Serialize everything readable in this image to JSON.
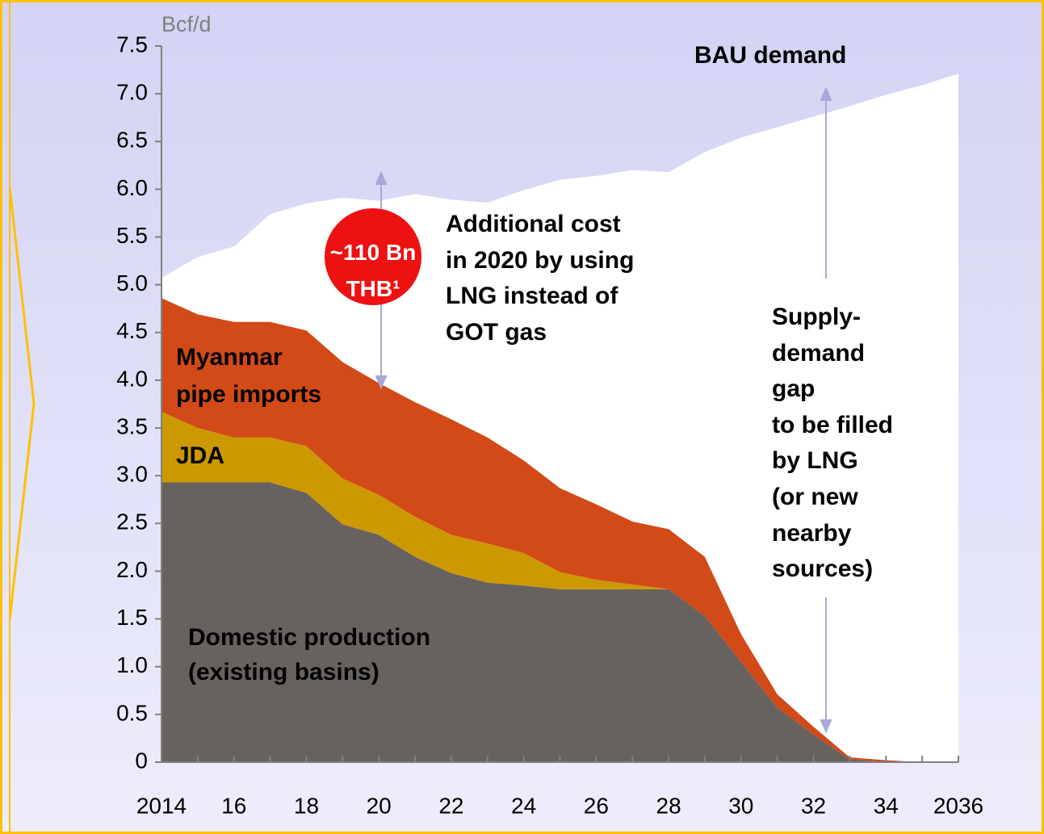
{
  "chart_data": {
    "type": "stacked-area",
    "y_unit": "Bcf/d",
    "x": [
      2014,
      2015,
      2016,
      2017,
      2018,
      2019,
      2020,
      2021,
      2022,
      2023,
      2024,
      2025,
      2026,
      2027,
      2028,
      2029,
      2030,
      2031,
      2032,
      2033,
      2034,
      2035,
      2036
    ],
    "xlim": [
      2014,
      2036
    ],
    "xticks": [
      {
        "value": 2014,
        "label": "2014"
      },
      {
        "value": 2016,
        "label": "16"
      },
      {
        "value": 2018,
        "label": "18"
      },
      {
        "value": 2020,
        "label": "20"
      },
      {
        "value": 2022,
        "label": "22"
      },
      {
        "value": 2024,
        "label": "24"
      },
      {
        "value": 2026,
        "label": "26"
      },
      {
        "value": 2028,
        "label": "28"
      },
      {
        "value": 2030,
        "label": "30"
      },
      {
        "value": 2032,
        "label": "32"
      },
      {
        "value": 2034,
        "label": "34"
      },
      {
        "value": 2036,
        "label": "2036"
      }
    ],
    "ylim": [
      0,
      7.5
    ],
    "yticks": [
      0,
      0.5,
      {
        "value": 1,
        "label": "1.0"
      },
      1.5,
      {
        "value": 2,
        "label": "2.0"
      },
      2.5,
      {
        "value": 3,
        "label": "3.0"
      },
      3.5,
      {
        "value": 4,
        "label": "4.0"
      },
      4.5,
      {
        "value": 5,
        "label": "5.0"
      },
      5.5,
      {
        "value": 6,
        "label": "6.0"
      },
      6.5,
      {
        "value": 7,
        "label": "7.0"
      },
      7.5
    ],
    "series": [
      {
        "name": "Domestic production\n(existing basins)",
        "color": "#676260",
        "values": [
          2.93,
          2.93,
          2.93,
          2.93,
          2.82,
          2.49,
          2.38,
          2.15,
          1.98,
          1.88,
          1.85,
          1.81,
          1.81,
          1.81,
          1.81,
          1.53,
          1.05,
          0.57,
          0.29,
          0.03,
          0,
          0,
          0
        ]
      },
      {
        "name": "JDA",
        "color": "#cc9900",
        "values": [
          0.74,
          0.57,
          0.47,
          0.47,
          0.49,
          0.48,
          0.42,
          0.42,
          0.4,
          0.41,
          0.34,
          0.18,
          0.1,
          0.05,
          0,
          0,
          0,
          0,
          0,
          0,
          0,
          0,
          0
        ]
      },
      {
        "name": "Myanmar\npipe imports",
        "color": "#d24a18",
        "values": [
          1.19,
          1.19,
          1.21,
          1.21,
          1.21,
          1.22,
          1.17,
          1.2,
          1.21,
          1.11,
          0.97,
          0.88,
          0.79,
          0.66,
          0.63,
          0.62,
          0.29,
          0.14,
          0.08,
          0.02,
          0.02,
          0,
          0
        ]
      }
    ],
    "demand": {
      "name": "BAU demand",
      "color": "#ffffff",
      "values": [
        5.07,
        5.29,
        5.4,
        5.74,
        5.85,
        5.91,
        5.88,
        5.95,
        5.89,
        5.86,
        5.99,
        6.1,
        6.14,
        6.2,
        6.18,
        6.39,
        6.54,
        6.65,
        6.76,
        6.87,
        6.99,
        7.09,
        7.21
      ]
    },
    "cost_bubble": "~110 Bn\nTHB¹",
    "cost_note": "Additional cost\nin 2020 by using\nLNG instead of\nGOT gas",
    "gap_note": "Supply-\ndemand\ngap\nto be filled\nby LNG\n(or new\nnearby\nsources)"
  }
}
